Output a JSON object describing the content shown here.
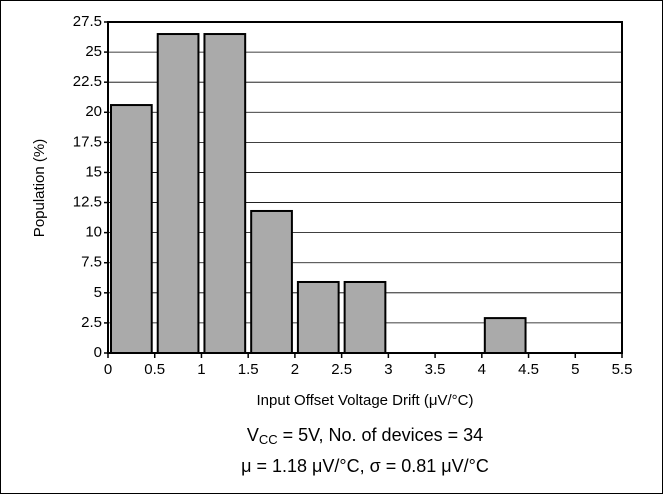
{
  "chart_data": {
    "type": "histogram",
    "bins": [
      0,
      0.5,
      1,
      1.5,
      2,
      2.5,
      3,
      3.5,
      4,
      4.5,
      5,
      5.5
    ],
    "values": [
      20.6,
      26.5,
      26.5,
      11.8,
      5.9,
      5.9,
      0,
      0,
      2.9,
      0,
      0
    ],
    "color": "#aaaaaa",
    "xlim": [
      0,
      5.5
    ],
    "xticks": [
      0,
      0.5,
      1,
      1.5,
      2,
      2.5,
      3,
      3.5,
      4,
      4.5,
      5,
      5.5
    ],
    "ylim": [
      0,
      27.5
    ],
    "yticks": [
      0,
      2.5,
      5,
      7.5,
      10,
      12.5,
      15,
      17.5,
      20,
      22.5,
      25,
      27.5
    ],
    "grid": true,
    "xlabel": "Input Offset Voltage Drift (μV/°C)",
    "ylabel": "Population (%)",
    "annotations": [
      [
        "V",
        "CC",
        " = 5V, No. of devices = 34"
      ],
      [
        "μ = 1.18 μV/°C,  σ = 0.81 μV/°C"
      ]
    ]
  }
}
